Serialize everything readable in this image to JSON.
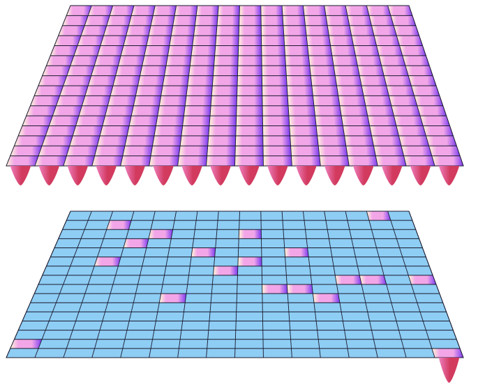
{
  "colors": {
    "background": "#ffffff",
    "grid_line": "#1a1a2e",
    "lower_plane_fill": "#8ecdf4",
    "well_highlight": "#fff8d8",
    "well_pink": "#f2a6e8",
    "well_violet": "#7a3cf0",
    "tip_red": "#d23a5e",
    "tip_pink": "#ee7fc0"
  },
  "panels": [
    {
      "name": "upper-lattice",
      "grid_columns": 16,
      "grid_rows": 16,
      "every_cell_has_well": true
    },
    {
      "name": "lower-lattice",
      "grid_columns": 16,
      "grid_rows": 16,
      "every_cell_has_well": false,
      "occupied_cells": [
        [
          0,
          14
        ],
        [
          1,
          2
        ],
        [
          2,
          8
        ],
        [
          2,
          4
        ],
        [
          3,
          3
        ],
        [
          4,
          6
        ],
        [
          4,
          10
        ],
        [
          5,
          2
        ],
        [
          5,
          8
        ],
        [
          6,
          7
        ],
        [
          7,
          15
        ],
        [
          7,
          13
        ],
        [
          7,
          12
        ],
        [
          8,
          9
        ],
        [
          8,
          10
        ],
        [
          9,
          5
        ],
        [
          9,
          11
        ],
        [
          14,
          0
        ],
        [
          15,
          15
        ]
      ]
    }
  ]
}
